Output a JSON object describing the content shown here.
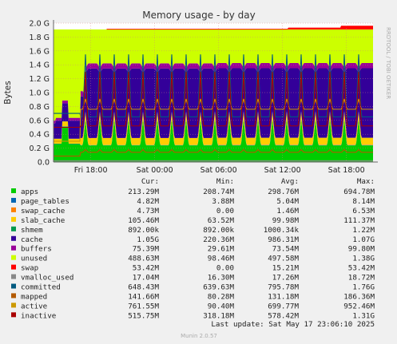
{
  "chart_data": {
    "type": "area",
    "title": "Memory usage - by day",
    "ylabel": "Bytes",
    "y_unit": "bytes",
    "ylim": [
      0,
      2000000000
    ],
    "y_ticks": [
      "0.0",
      "0.2 G",
      "0.4 G",
      "0.6 G",
      "0.8 G",
      "1.0 G",
      "1.2 G",
      "1.4 G",
      "1.6 G",
      "1.8 G",
      "2.0 G"
    ],
    "x_ticks": [
      "Fri 18:00",
      "Sat 00:00",
      "Sat 06:00",
      "Sat 12:00",
      "Sat 18:00"
    ],
    "x_range_hours": [
      0,
      30
    ],
    "x_tick_hours": [
      3.5,
      9.5,
      15.5,
      21.5,
      27.5
    ],
    "grid": true,
    "legend_headers": [
      "Cur:",
      "Min:",
      "Avg:",
      "Max:"
    ],
    "series": [
      {
        "name": "apps",
        "color": "#00cc00",
        "cur": "213.29M",
        "min": "208.74M",
        "avg": "298.76M",
        "max": "694.78M"
      },
      {
        "name": "page_tables",
        "color": "#0066b3",
        "cur": "4.82M",
        "min": "3.88M",
        "avg": "5.04M",
        "max": "8.14M"
      },
      {
        "name": "swap_cache",
        "color": "#ff8000",
        "cur": "4.73M",
        "min": "0.00",
        "avg": "1.46M",
        "max": "6.53M"
      },
      {
        "name": "slab_cache",
        "color": "#ffcc00",
        "cur": "105.46M",
        "min": "63.52M",
        "avg": "99.98M",
        "max": "111.37M"
      },
      {
        "name": "shmem",
        "color": "#00994d",
        "cur": "892.00k",
        "min": "892.00k",
        "avg": "1000.34k",
        "max": "1.22M"
      },
      {
        "name": "cache",
        "color": "#330099",
        "cur": "1.05G",
        "min": "220.36M",
        "avg": "986.31M",
        "max": "1.07G"
      },
      {
        "name": "buffers",
        "color": "#990099",
        "cur": "75.39M",
        "min": "29.61M",
        "avg": "73.54M",
        "max": "99.80M"
      },
      {
        "name": "unused",
        "color": "#ccff00",
        "cur": "488.63M",
        "min": "98.46M",
        "avg": "497.58M",
        "max": "1.38G"
      },
      {
        "name": "swap",
        "color": "#ff0000",
        "cur": "53.42M",
        "min": "0.00",
        "avg": "15.21M",
        "max": "53.42M"
      },
      {
        "name": "vmalloc_used",
        "color": "#888888",
        "cur": "17.04M",
        "min": "16.30M",
        "avg": "17.26M",
        "max": "18.72M"
      },
      {
        "name": "committed",
        "color": "#005a80",
        "cur": "648.43M",
        "min": "639.63M",
        "avg": "795.78M",
        "max": "1.76G"
      },
      {
        "name": "mapped",
        "color": "#b35a00",
        "cur": "141.66M",
        "min": "80.28M",
        "avg": "131.18M",
        "max": "186.36M"
      },
      {
        "name": "active",
        "color": "#cc9900",
        "cur": "761.55M",
        "min": "90.40M",
        "avg": "699.77M",
        "max": "952.46M"
      },
      {
        "name": "inactive",
        "color": "#aa0000",
        "cur": "515.75M",
        "min": "318.18M",
        "avg": "578.42M",
        "max": "1.31G"
      }
    ],
    "last_update": "Last update: Sat May 17 23:06:10 2025"
  },
  "side_text": "RRDTOOL / TOBI OETIKER",
  "footer": "Munin 2.0.57"
}
